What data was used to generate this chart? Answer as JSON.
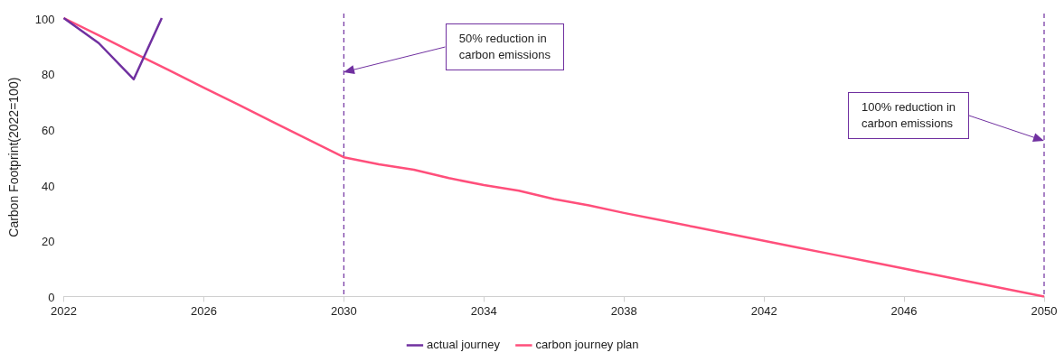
{
  "chart_data": {
    "type": "line",
    "ylabel": "Carbon Footprint(2022=100)",
    "xlim": [
      2022,
      2050
    ],
    "xticks": [
      2022,
      2026,
      2030,
      2034,
      2038,
      2042,
      2046,
      2050
    ],
    "ylim": [
      0,
      100
    ],
    "yticks": [
      0,
      20,
      40,
      60,
      80,
      100
    ],
    "series": [
      {
        "name": "actual journey",
        "color": "#7030a0",
        "x": [
          2022,
          2023,
          2024,
          2024.8
        ],
        "values": [
          100,
          91,
          78,
          100
        ]
      },
      {
        "name": "carbon journey plan",
        "color": "#ff4f7b",
        "x": [
          2022,
          2023,
          2024,
          2025,
          2026,
          2027,
          2028,
          2029,
          2030,
          2031,
          2032,
          2033,
          2034,
          2035,
          2036,
          2037,
          2038,
          2039,
          2040,
          2041,
          2042,
          2043,
          2044,
          2045,
          2046,
          2047,
          2048,
          2049,
          2050
        ],
        "values": [
          100,
          93.8,
          87.5,
          81.3,
          75,
          68.8,
          62.5,
          56.3,
          50,
          47.5,
          45.5,
          42.5,
          40,
          38,
          35,
          32.7,
          30,
          27.5,
          25,
          22.5,
          20,
          17.5,
          15,
          12.5,
          10,
          7.5,
          5,
          2.5,
          0
        ]
      }
    ],
    "ref_lines": [
      {
        "axis": "x",
        "value": 2030,
        "color": "#7030a0",
        "line_style": "dashed"
      },
      {
        "axis": "x",
        "value": 2050,
        "color": "#7030a0",
        "line_style": "dashed"
      }
    ],
    "annotations": [
      "50% reduction in\ncarbon emissions",
      "100% reduction in\ncarbon emissions"
    ],
    "grid": false,
    "legend": "bottom",
    "marker": "none",
    "line_style": "solid"
  }
}
